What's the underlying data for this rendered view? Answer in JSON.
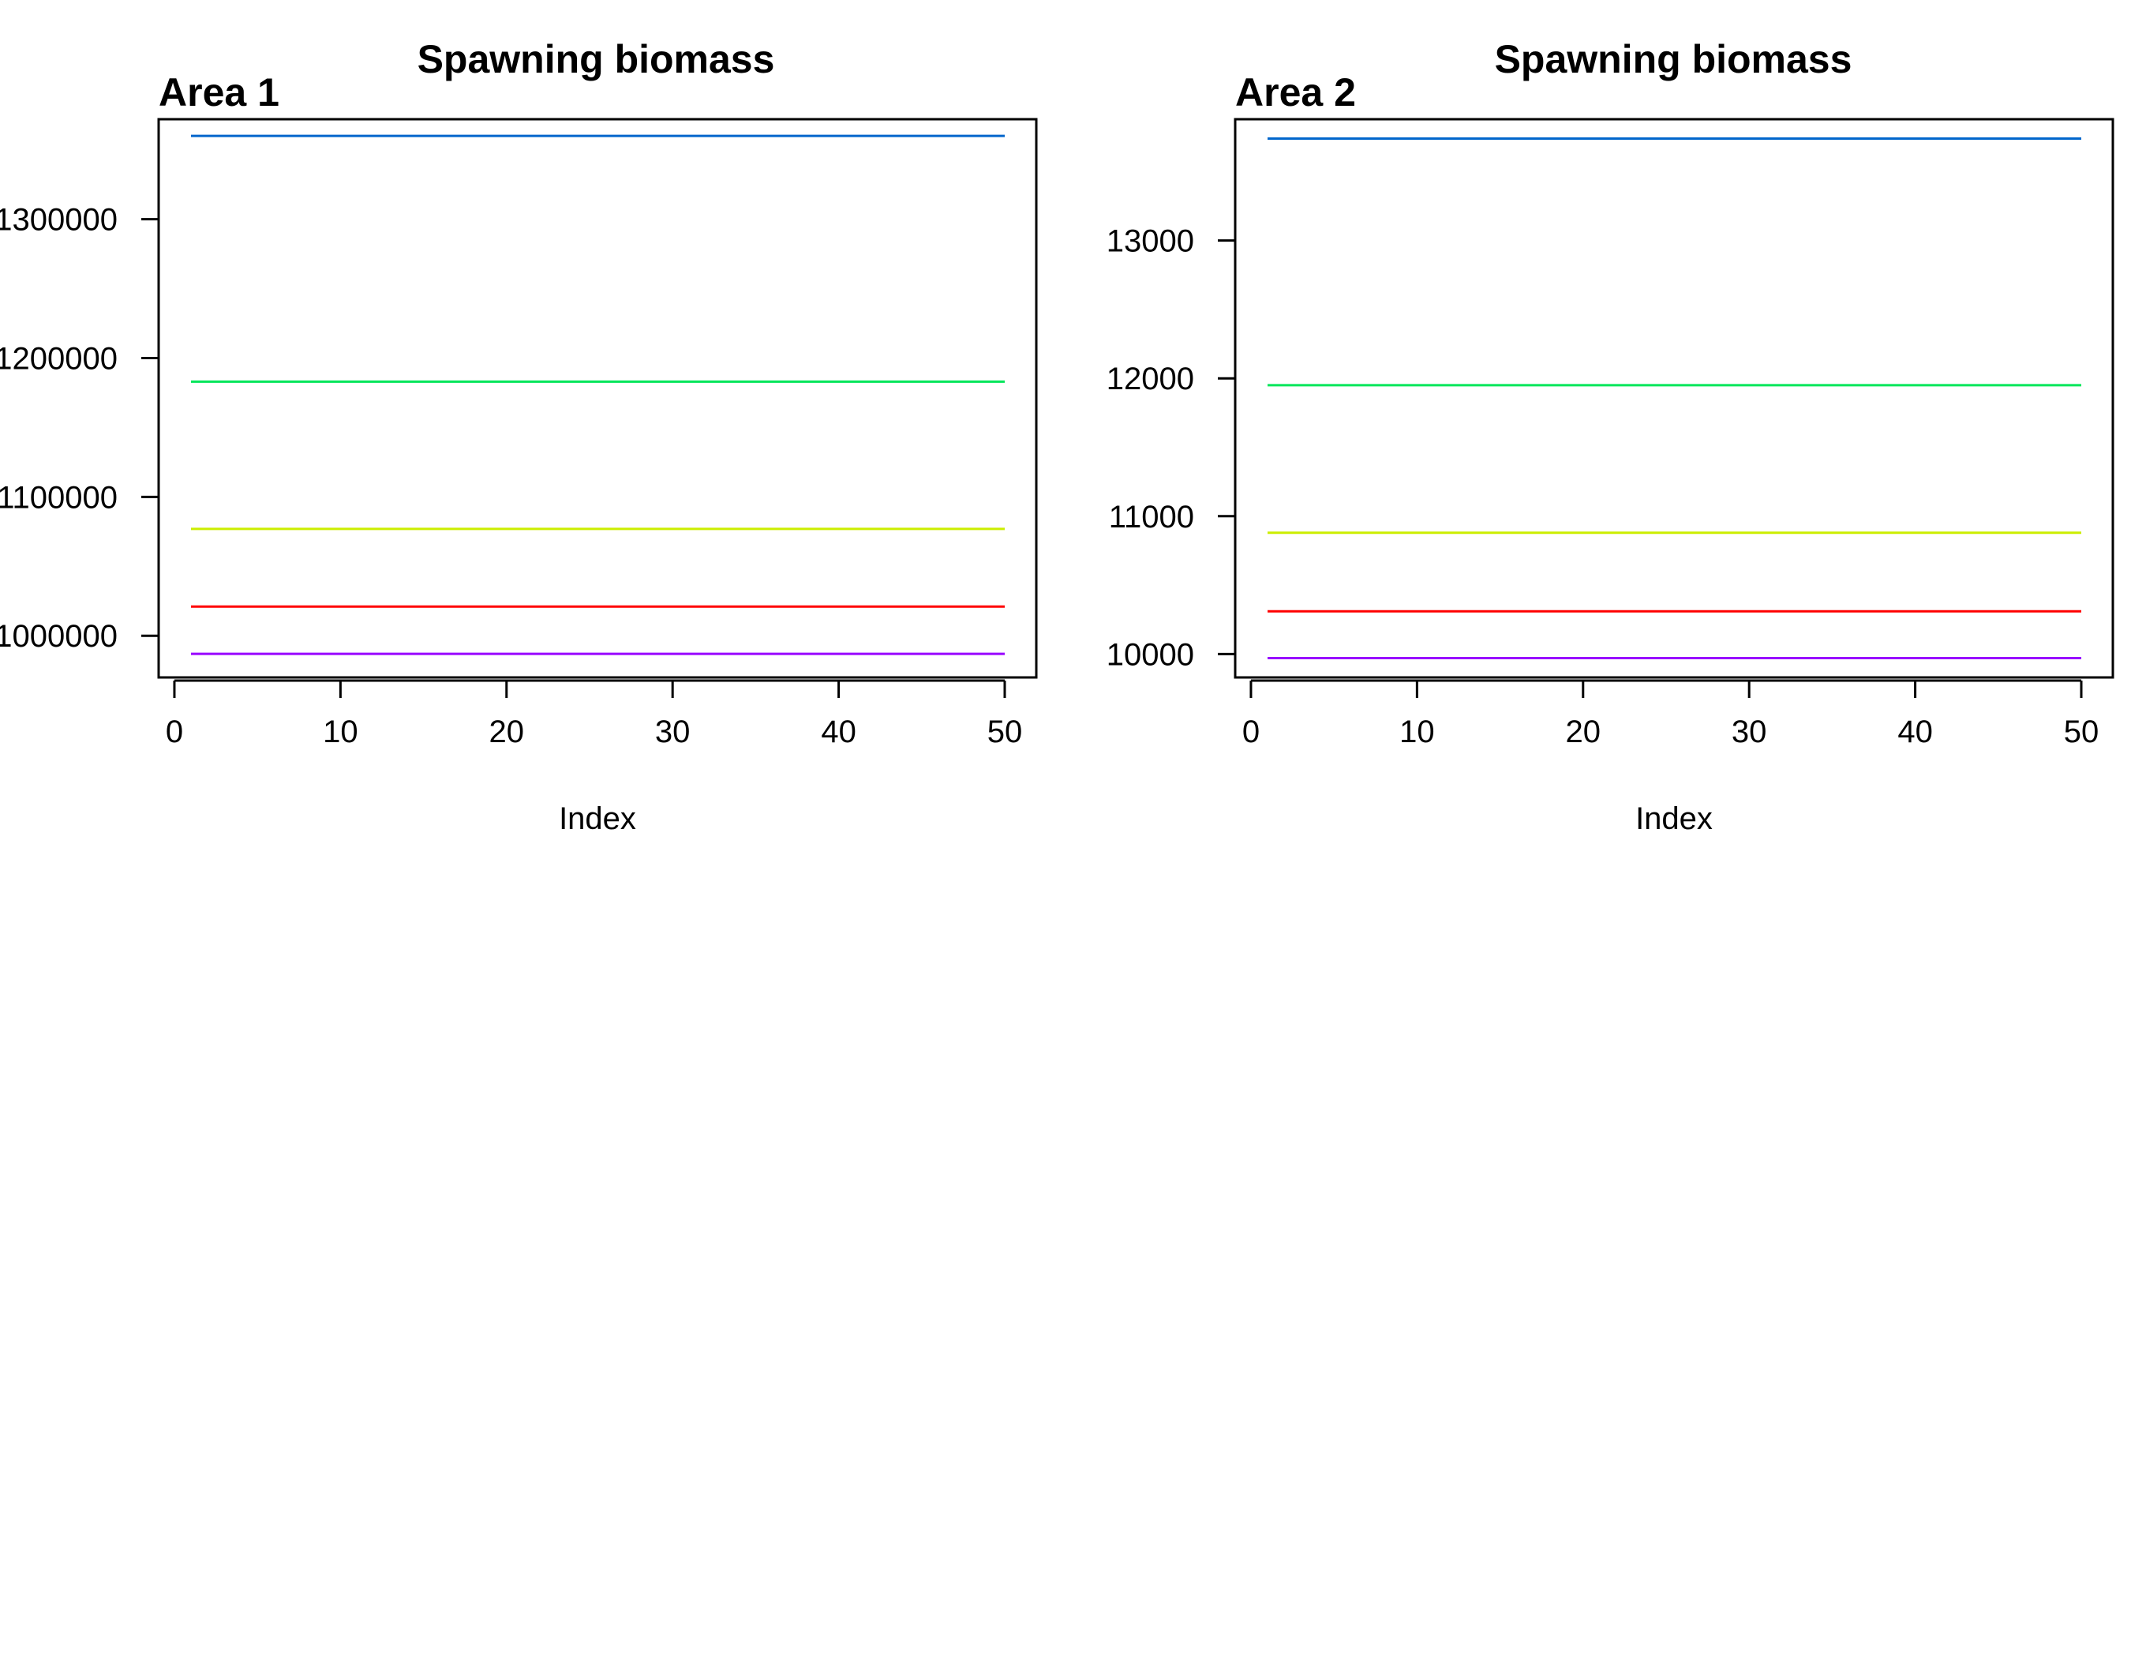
{
  "chart_data": [
    {
      "type": "line",
      "title": "Spawning biomass",
      "area_label": "Area 1",
      "xlabel": "Index",
      "ylabel": "",
      "xlim": [
        1,
        50
      ],
      "ylim": [
        970000,
        1372000
      ],
      "x_ticks": [
        0,
        10,
        20,
        30,
        40,
        50
      ],
      "x_tick_labels": [
        "0",
        "10",
        "20",
        "30",
        "40",
        "50"
      ],
      "y_ticks": [
        1000000,
        1100000,
        1200000,
        1300000
      ],
      "y_tick_labels": [
        "1000000",
        "1100000",
        "1200000",
        "1300000"
      ],
      "x_range": [
        1,
        50
      ],
      "series": [
        {
          "color": "#0066cc",
          "values": [
            1360000,
            1360000
          ]
        },
        {
          "color": "#00e65a",
          "values": [
            1183000,
            1183000
          ]
        },
        {
          "color": "#ccee00",
          "values": [
            1077000,
            1077000
          ]
        },
        {
          "color": "#ff0000",
          "values": [
            1021000,
            1021000
          ]
        },
        {
          "color": "#9900ff",
          "values": [
            987000,
            987000
          ]
        }
      ],
      "grid": false,
      "legend": "none"
    },
    {
      "type": "line",
      "title": "Spawning biomass",
      "area_label": "Area 2",
      "xlabel": "Index",
      "ylabel": "",
      "xlim": [
        1,
        50
      ],
      "ylim": [
        9830,
        13880
      ],
      "x_ticks": [
        0,
        10,
        20,
        30,
        40,
        50
      ],
      "x_tick_labels": [
        "0",
        "10",
        "20",
        "30",
        "40",
        "50"
      ],
      "y_ticks": [
        10000,
        11000,
        12000,
        13000
      ],
      "y_tick_labels": [
        "10000",
        "11000",
        "12000",
        "13000"
      ],
      "x_range": [
        1,
        50
      ],
      "series": [
        {
          "color": "#0066cc",
          "values": [
            13740,
            13740
          ]
        },
        {
          "color": "#00e65a",
          "values": [
            11950,
            11950
          ]
        },
        {
          "color": "#ccee00",
          "values": [
            10880,
            10880
          ]
        },
        {
          "color": "#ff0000",
          "values": [
            10310,
            10310
          ]
        },
        {
          "color": "#9900ff",
          "values": [
            9970,
            9970
          ]
        }
      ],
      "grid": false,
      "legend": "none"
    }
  ]
}
